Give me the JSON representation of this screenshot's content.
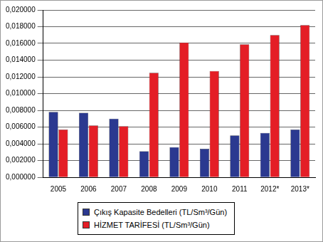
{
  "chart_data": {
    "type": "bar",
    "categories": [
      "2005",
      "2006",
      "2007",
      "2008",
      "2009",
      "2010",
      "2011",
      "2012*",
      "2013*"
    ],
    "series": [
      {
        "name": "Çıkış Kapasite Bedelleri (TL/Sm³/Gün)",
        "color": "#2b3990",
        "values": [
          0.0078,
          0.0077,
          0.007,
          0.0031,
          0.0036,
          0.0034,
          0.005,
          0.0053,
          0.0057
        ]
      },
      {
        "name": "HİZMET TARİFESİ (TL/Sm³/Gün)",
        "color": "#e41e26",
        "values": [
          0.0057,
          0.0062,
          0.0061,
          0.0125,
          0.0161,
          0.0127,
          0.0159,
          0.017,
          0.0182
        ]
      }
    ],
    "ylim": [
      0,
      0.02
    ],
    "yticks": [
      {
        "value": 0,
        "label": "0,000000"
      },
      {
        "value": 0.002,
        "label": "0,002000"
      },
      {
        "value": 0.004,
        "label": "0,004000"
      },
      {
        "value": 0.006,
        "label": "0,006000"
      },
      {
        "value": 0.008,
        "label": "0,008000"
      },
      {
        "value": 0.01,
        "label": "0,010000"
      },
      {
        "value": 0.012,
        "label": "0,012000"
      },
      {
        "value": 0.014,
        "label": "0,014000"
      },
      {
        "value": 0.016,
        "label": "0,016000"
      },
      {
        "value": 0.018,
        "label": "0,018000"
      },
      {
        "value": 0.02,
        "label": "0,020000"
      }
    ],
    "grid": true,
    "legend": "bottom"
  }
}
